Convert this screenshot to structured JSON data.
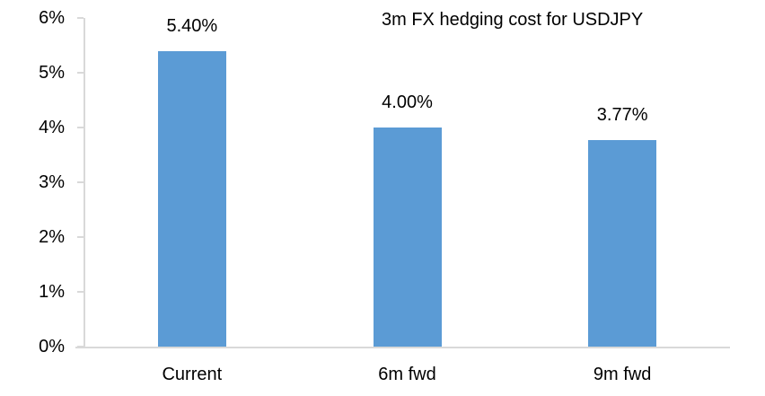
{
  "chart_data": {
    "type": "bar",
    "title": "3m FX hedging cost for USDJPY",
    "categories": [
      "Current",
      "6m fwd",
      "9m fwd"
    ],
    "values": [
      5.4,
      4.0,
      3.77
    ],
    "value_labels": [
      "5.40%",
      "4.00%",
      "3.77%"
    ],
    "xlabel": "",
    "ylabel": "",
    "ylim": [
      0,
      6
    ],
    "ytick_step": 1,
    "ytick_labels": [
      "0%",
      "1%",
      "2%",
      "3%",
      "4%",
      "5%",
      "6%"
    ],
    "grid": false,
    "legend": false,
    "bar_color": "#5B9BD5",
    "axis_color": "#D9D9D9",
    "text_color": "#000000",
    "background_color": "#FFFFFF"
  }
}
